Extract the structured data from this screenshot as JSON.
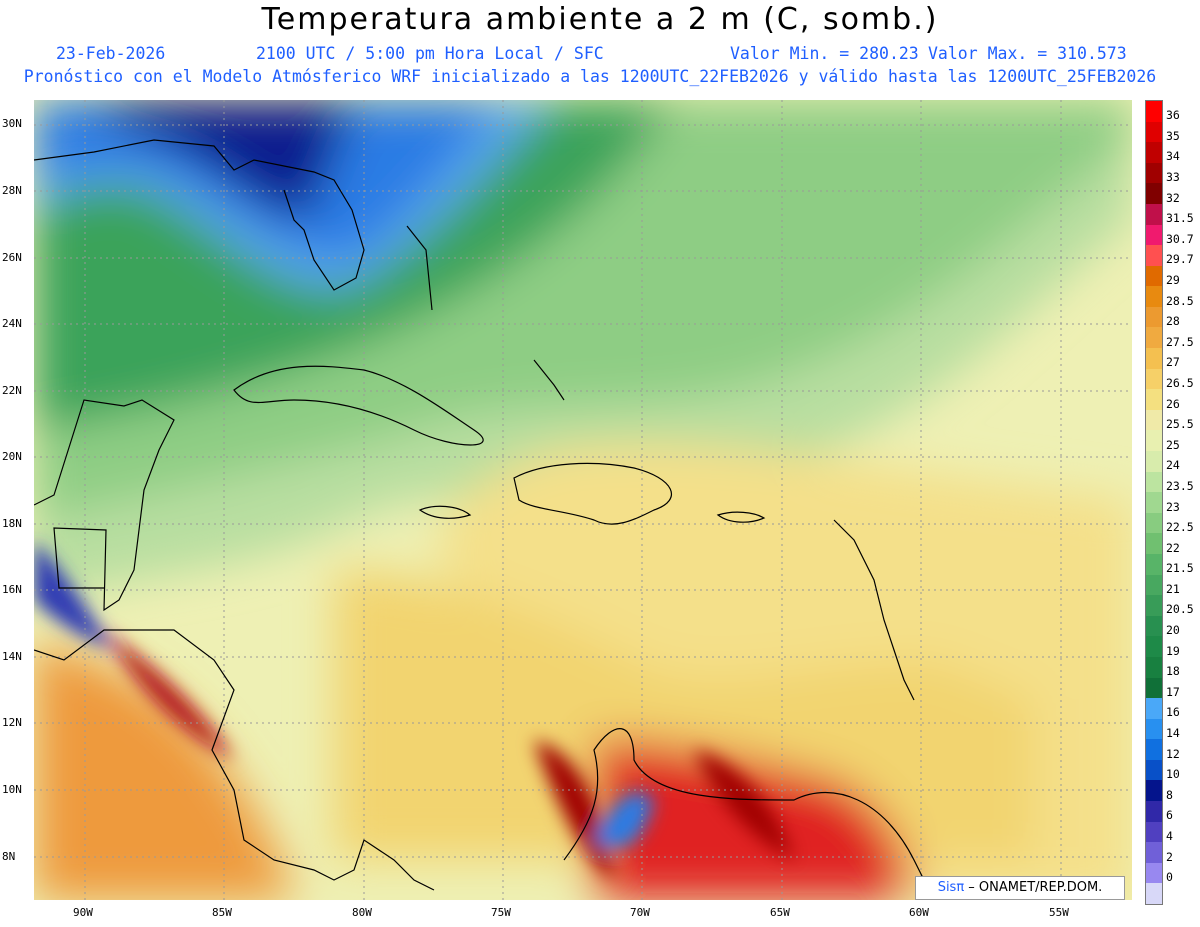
{
  "title": "Temperatura ambiente a 2 m (C, somb.)",
  "info": {
    "date": "23-Feb-2026",
    "time": "2100 UTC / 5:00 pm Hora Local / SFC",
    "min": "Valor Min. = 280.23",
    "max": "Valor Max. = 310.573",
    "model": "Pronóstico con el Modelo Atmósferico WRF inicializado a las 1200UTC_22FEB2026 y válido hasta las  1200UTC_25FEB2026"
  },
  "lat_labels": [
    "30N",
    "28N",
    "26N",
    "24N",
    "22N",
    "20N",
    "18N",
    "16N",
    "14N",
    "12N",
    "10N",
    "8N"
  ],
  "lon_labels": [
    "90W",
    "85W",
    "80W",
    "75W",
    "70W",
    "65W",
    "60W",
    "55W"
  ],
  "colorbar": {
    "labels": [
      "36",
      "35",
      "34",
      "33",
      "32",
      "31.5",
      "30.7",
      "29.7",
      "29",
      "28.5",
      "28",
      "27.5",
      "27",
      "26.5",
      "26",
      "25.5",
      "25",
      "24",
      "23.5",
      "23",
      "22.5",
      "22",
      "21.5",
      "21",
      "20.5",
      "20",
      "19",
      "18",
      "17",
      "16",
      "14",
      "12",
      "10",
      "8",
      "6",
      "4",
      "2",
      "0"
    ],
    "colors": [
      "#ff0000",
      "#e00000",
      "#c00000",
      "#a00000",
      "#800000",
      "#c0104a",
      "#f01a6e",
      "#ff5050",
      "#e06a00",
      "#e88a10",
      "#ec9a30",
      "#f0aa40",
      "#f4c050",
      "#f6d068",
      "#f4e080",
      "#f0eaa8",
      "#e8f0b0",
      "#d8ecac",
      "#bce4a0",
      "#a0d890",
      "#88cc80",
      "#70c070",
      "#58b468",
      "#48a860",
      "#389c58",
      "#289050",
      "#1e8a48",
      "#188040",
      "#107038",
      "#4aa8f8",
      "#2890f0",
      "#1070e0",
      "#0850c8",
      "#04148c",
      "#3028a8",
      "#5040c0",
      "#7060d8",
      "#9888f0"
    ],
    "bottom_color": "#d8d8f8"
  },
  "credit": {
    "brand": "Sisπ",
    "text": " – ONAMET/REP.DOM."
  }
}
